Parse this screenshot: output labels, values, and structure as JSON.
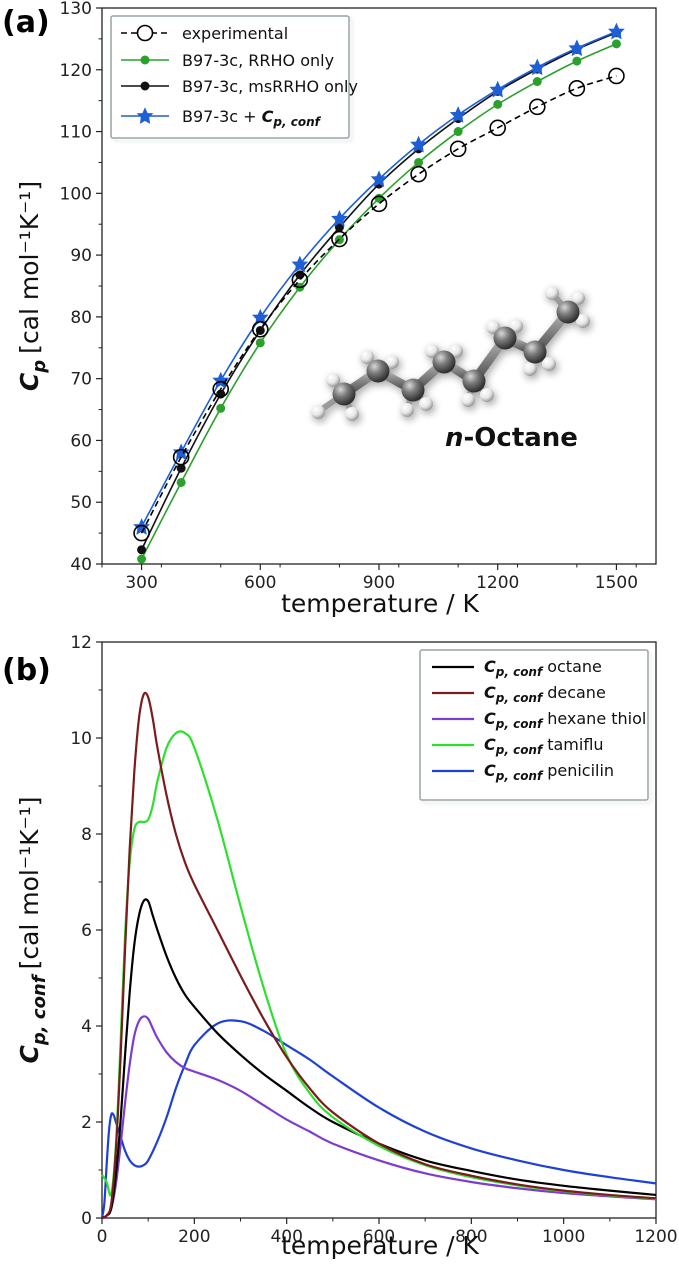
{
  "chart_data": [
    {
      "panel": "(a)",
      "type": "line",
      "xlabel": "temperature / K",
      "ylabel_symbol": "C",
      "ylabel_sub": "p",
      "ylabel_unit": "[cal mol⁻¹K⁻¹]",
      "xlim": [
        200,
        1600
      ],
      "ylim": [
        40,
        130
      ],
      "x_ticks": [
        300,
        600,
        900,
        1200,
        1500
      ],
      "y_ticks": [
        40,
        50,
        60,
        70,
        80,
        90,
        100,
        110,
        120,
        130
      ],
      "legend_position": "top-left",
      "annotation": {
        "italic": "n",
        "rest": "-Octane"
      },
      "series": [
        {
          "name": "experimental",
          "color": "#000000",
          "marker": "open-circle",
          "dashed": true,
          "x": [
            300,
            400,
            500,
            600,
            700,
            800,
            900,
            1000,
            1100,
            1200,
            1300,
            1400,
            1500
          ],
          "y": [
            45.0,
            57.3,
            68.3,
            78.0,
            86.0,
            92.6,
            98.3,
            103.1,
            107.2,
            110.6,
            114.0,
            117.0,
            119.0
          ]
        },
        {
          "name": "B97-3c, RRHO only",
          "color": "#2ca02c",
          "marker": "dot",
          "dashed": false,
          "x": [
            300,
            400,
            500,
            600,
            700,
            800,
            900,
            1000,
            1100,
            1200,
            1300,
            1400,
            1500
          ],
          "y": [
            40.8,
            53.2,
            65.2,
            75.8,
            84.8,
            92.5,
            99.2,
            105.0,
            110.0,
            114.4,
            118.1,
            121.4,
            124.2
          ]
        },
        {
          "name": "B97-3c, msRRHO only",
          "color": "#111111",
          "marker": "dot",
          "dashed": false,
          "x": [
            300,
            400,
            500,
            600,
            700,
            800,
            900,
            1000,
            1100,
            1200,
            1300,
            1400,
            1500
          ],
          "y": [
            42.3,
            55.5,
            67.5,
            77.8,
            86.8,
            94.5,
            101.5,
            107.2,
            112.1,
            116.5,
            120.1,
            123.3,
            126.0
          ]
        },
        {
          "name_prefix": "B97-3c + ",
          "name_symbol": "C",
          "name_sub": "p, conf",
          "color": "#1f5fd6",
          "marker": "star",
          "dashed": false,
          "x": [
            300,
            400,
            500,
            600,
            700,
            800,
            900,
            1000,
            1100,
            1200,
            1300,
            1400,
            1500
          ],
          "y": [
            46.0,
            58.1,
            69.7,
            79.9,
            88.5,
            95.9,
            102.3,
            107.9,
            112.7,
            116.8,
            120.4,
            123.5,
            126.2
          ]
        }
      ]
    },
    {
      "panel": "(b)",
      "type": "line",
      "xlabel": "temperature / K",
      "ylabel_symbol": "C",
      "ylabel_sub": "p, conf",
      "ylabel_unit": "[cal mol⁻¹K⁻¹]",
      "xlim": [
        0,
        1200
      ],
      "ylim": [
        0,
        12
      ],
      "x_ticks": [
        0,
        200,
        400,
        600,
        800,
        1000,
        1200
      ],
      "y_ticks": [
        0,
        2,
        4,
        6,
        8,
        10,
        12
      ],
      "legend_position": "top-right",
      "series": [
        {
          "symbol": "C",
          "sub": "p, conf",
          "label": "octane",
          "color": "#000000",
          "x": [
            0,
            10,
            20,
            30,
            40,
            50,
            60,
            70,
            80,
            90,
            100,
            110,
            120,
            140,
            160,
            180,
            200,
            250,
            300,
            350,
            400,
            450,
            500,
            600,
            700,
            800,
            900,
            1000,
            1100,
            1200
          ],
          "y": [
            0,
            0.05,
            0.2,
            0.9,
            2.0,
            3.4,
            4.7,
            5.7,
            6.3,
            6.6,
            6.6,
            6.3,
            6.0,
            5.45,
            5.0,
            4.65,
            4.4,
            3.85,
            3.4,
            3.0,
            2.65,
            2.3,
            2.0,
            1.55,
            1.2,
            0.98,
            0.8,
            0.67,
            0.57,
            0.48
          ]
        },
        {
          "symbol": "C",
          "sub": "p, conf",
          "label": "decane",
          "color": "#7b1c1c",
          "x": [
            0,
            10,
            20,
            30,
            40,
            50,
            60,
            70,
            80,
            90,
            100,
            110,
            120,
            140,
            160,
            180,
            200,
            250,
            300,
            350,
            400,
            450,
            500,
            600,
            700,
            800,
            900,
            1000,
            1100,
            1200
          ],
          "y": [
            0,
            0.05,
            0.3,
            1.4,
            3.3,
            5.6,
            7.7,
            9.3,
            10.4,
            10.9,
            10.85,
            10.4,
            9.8,
            8.8,
            8.0,
            7.4,
            6.95,
            6.0,
            5.05,
            4.15,
            3.35,
            2.7,
            2.2,
            1.55,
            1.12,
            0.88,
            0.7,
            0.57,
            0.48,
            0.41
          ]
        },
        {
          "symbol": "C",
          "sub": "p, conf",
          "label": "hexane thiol",
          "color": "#7d3bd1",
          "x": [
            0,
            10,
            20,
            30,
            40,
            50,
            60,
            70,
            80,
            90,
            100,
            110,
            120,
            140,
            160,
            180,
            200,
            250,
            300,
            350,
            400,
            450,
            500,
            600,
            700,
            800,
            900,
            1000,
            1100,
            1200
          ],
          "y": [
            0,
            0.05,
            0.2,
            0.7,
            1.5,
            2.4,
            3.2,
            3.8,
            4.1,
            4.2,
            4.15,
            3.95,
            3.75,
            3.45,
            3.25,
            3.12,
            3.05,
            2.88,
            2.65,
            2.35,
            2.05,
            1.8,
            1.55,
            1.2,
            0.93,
            0.75,
            0.62,
            0.52,
            0.45,
            0.39
          ]
        },
        {
          "symbol": "C",
          "sub": "p, conf",
          "label": "tamiflu",
          "color": "#2ee02e",
          "x": [
            0,
            10,
            20,
            30,
            40,
            50,
            60,
            70,
            80,
            90,
            100,
            110,
            120,
            140,
            160,
            180,
            200,
            250,
            300,
            350,
            400,
            450,
            500,
            600,
            700,
            800,
            900,
            1000,
            1100,
            1200
          ],
          "y": [
            0.9,
            0.75,
            0.5,
            1.5,
            3.6,
            5.9,
            7.4,
            8.1,
            8.25,
            8.25,
            8.3,
            8.6,
            9.1,
            9.8,
            10.1,
            10.1,
            9.8,
            8.3,
            6.5,
            4.8,
            3.4,
            2.6,
            2.1,
            1.5,
            1.1,
            0.85,
            0.68,
            0.56,
            0.47,
            0.4
          ]
        },
        {
          "symbol": "C",
          "sub": "p, conf",
          "label": "penicilin",
          "color": "#1f3fd9",
          "x": [
            0,
            5,
            10,
            15,
            20,
            25,
            30,
            40,
            50,
            60,
            70,
            80,
            90,
            100,
            120,
            140,
            160,
            180,
            200,
            250,
            300,
            350,
            400,
            450,
            500,
            600,
            700,
            800,
            900,
            1000,
            1100,
            1200
          ],
          "y": [
            0,
            0.3,
            1.1,
            1.8,
            2.15,
            2.15,
            2.0,
            1.7,
            1.4,
            1.2,
            1.1,
            1.07,
            1.1,
            1.2,
            1.6,
            2.1,
            2.7,
            3.2,
            3.6,
            4.05,
            4.1,
            3.9,
            3.6,
            3.3,
            2.95,
            2.3,
            1.8,
            1.45,
            1.2,
            1.0,
            0.85,
            0.72
          ]
        }
      ]
    }
  ]
}
